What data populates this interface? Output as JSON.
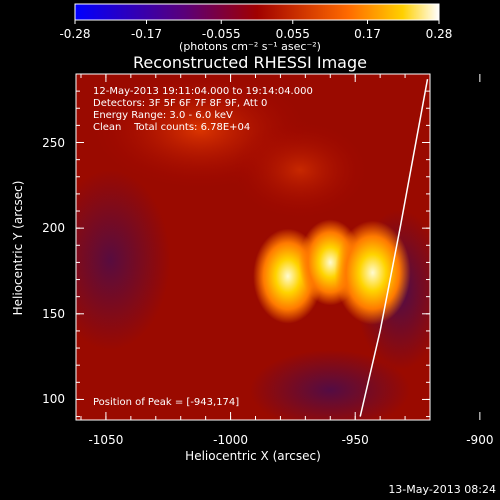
{
  "colorbar": {
    "ticks": [
      "-0.28",
      "-0.17",
      "-0.055",
      "0.055",
      "0.17",
      "0.28"
    ],
    "units": "(photons cm⁻² s⁻¹ asec⁻²)",
    "range": [
      -0.28,
      0.28
    ]
  },
  "title": "Reconstructed RHESSI Image",
  "annotations": {
    "time": "12-May-2013 19:11:04.000 to 19:14:04.000",
    "detectors": "Detectors: 3F 5F 6F 7F 8F 9F, Att 0",
    "energy": "Energy Range: 3.0 - 6.0 keV",
    "clean": "Clean    Total counts: 6.78E+04",
    "peak": "Position of Peak = [-943,174]"
  },
  "footer": "13-May-2013 08:24",
  "chart_data": {
    "type": "heatmap",
    "title": "Reconstructed RHESSI Image",
    "xlabel": "Heliocentric X (arcsec)",
    "ylabel": "Heliocentric Y (arcsec)",
    "xlim": [
      -1062,
      -920
    ],
    "ylim": [
      88,
      290
    ],
    "xticks": [
      "-1050",
      "-1000",
      "-950",
      "-900"
    ],
    "yticks": [
      "100",
      "150",
      "200",
      "250"
    ],
    "colorbar_range": [
      -0.28,
      0.28
    ],
    "sources": [
      {
        "x": -977,
        "y": 172,
        "peak": 0.25
      },
      {
        "x": -960,
        "y": 180,
        "peak": 0.22
      },
      {
        "x": -943,
        "y": 174,
        "peak": 0.28
      }
    ],
    "limb": [
      [
        -948,
        90
      ],
      [
        -940,
        140
      ],
      [
        -932,
        200
      ],
      [
        -921,
        287
      ]
    ],
    "peak_position": [
      -943,
      174
    ]
  }
}
